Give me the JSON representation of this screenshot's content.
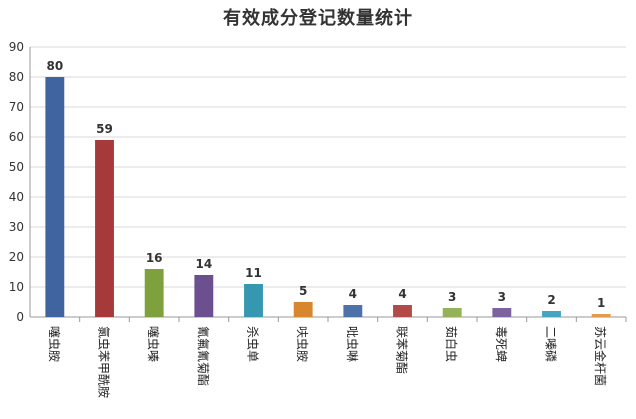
{
  "chart_data": {
    "type": "bar",
    "title": "有效成分登记数量统计",
    "categories": [
      "噻虫胺",
      "氯虫苯甲酰胺",
      "噻虫嗪",
      "氰氟氰菊酯",
      "杀虫单",
      "呋虫胺",
      "吡虫啉",
      "联苯菊酯",
      "茹白虫",
      "毒死蜱",
      "二嗪磷",
      "苏云金杆菌"
    ],
    "values": [
      80,
      59,
      16,
      14,
      11,
      5,
      4,
      4,
      3,
      3,
      2,
      1
    ],
    "colors": [
      "#3f64a0",
      "#a63a3a",
      "#7fa13d",
      "#6c4f8e",
      "#3697b0",
      "#d9872f",
      "#4f71aa",
      "#b24a48",
      "#94b257",
      "#7c63a0",
      "#45a5c0",
      "#e39a4a"
    ],
    "ylim": [
      0,
      90
    ],
    "yticks": [
      0,
      10,
      20,
      30,
      40,
      50,
      60,
      70,
      80,
      90
    ],
    "grid": true,
    "xlabel": "",
    "ylabel": ""
  }
}
